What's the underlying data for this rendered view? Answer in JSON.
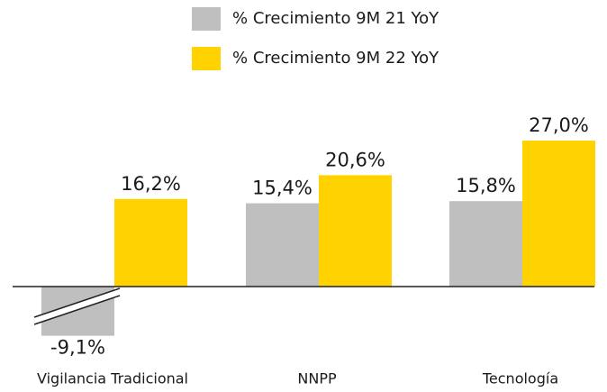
{
  "chart_data": {
    "type": "bar",
    "categories": [
      "Vigilancia Tradicional",
      "NNPP",
      "Tecnología"
    ],
    "series": [
      {
        "name": "% Crecimiento 9M 21 YoY",
        "color": "#bfbfbf",
        "values": [
          -9.1,
          15.4,
          15.8
        ],
        "value_labels": [
          "-9,1%",
          "15,4%",
          "15,8%"
        ]
      },
      {
        "name": "% Crecimiento 9M 22 YoY",
        "color": "#ffd200",
        "values": [
          16.2,
          20.6,
          27.0
        ],
        "value_labels": [
          "16,2%",
          "20,6%",
          "27,0%"
        ]
      }
    ],
    "legend": "top"
  }
}
